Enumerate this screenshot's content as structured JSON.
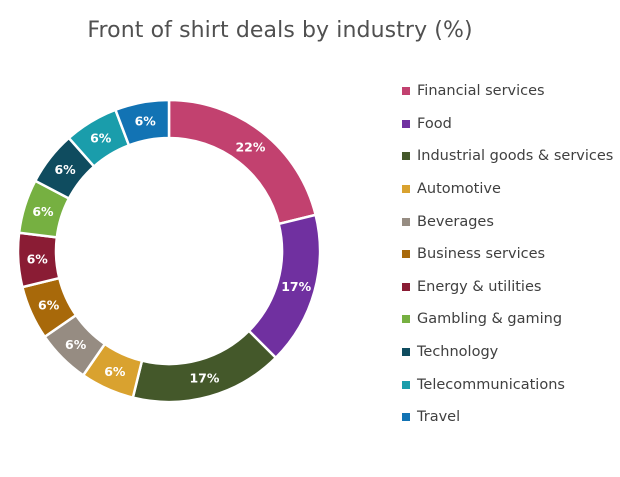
{
  "chart_data": {
    "type": "pie",
    "variant": "donut",
    "title": "Front of shirt deals by industry (%)",
    "legend_position": "right",
    "series": [
      {
        "name": "",
        "values": [
          22,
          17,
          17,
          6,
          6,
          6,
          6,
          6,
          6,
          6,
          6
        ]
      }
    ],
    "categories": [
      "Financial services",
      "Food",
      "Industrial goods & services",
      "Automotive",
      "Beverages",
      "Business services",
      "Energy & utilities",
      "Gambling & gaming",
      "Technology",
      "Telecommunications",
      "Travel"
    ],
    "data_labels": [
      "22%",
      "17%",
      "17%",
      "6%",
      "6%",
      "6%",
      "6%",
      "6%",
      "6%",
      "6%",
      "6%"
    ],
    "colors": [
      "#C2416F",
      "#7030A0",
      "#44582A",
      "#D9A22F",
      "#968C82",
      "#A8690A",
      "#8A1C34",
      "#76B041",
      "#0F4C5F",
      "#1A9DAB",
      "#1273B4"
    ]
  }
}
